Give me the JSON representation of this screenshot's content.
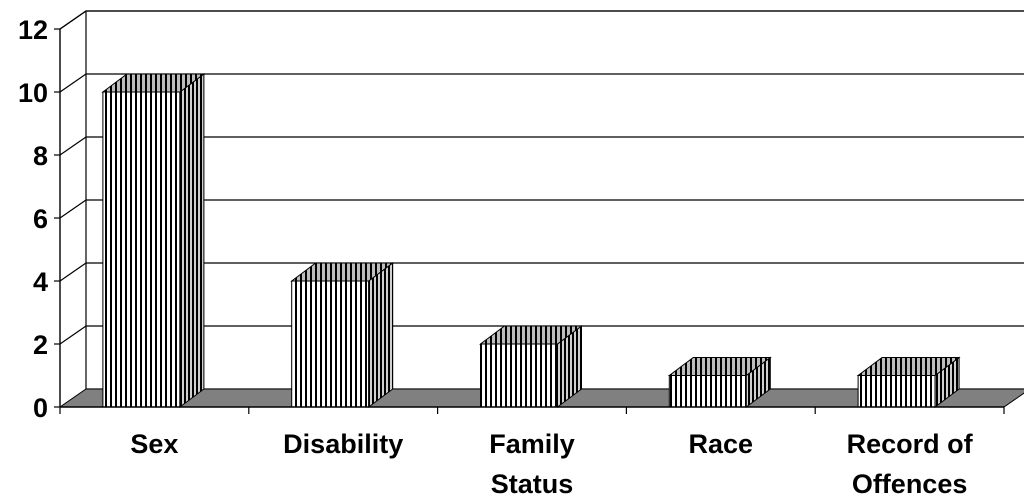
{
  "chart_data": {
    "type": "bar",
    "style": "3d-column",
    "categories": [
      "Sex",
      "Disability",
      "Family Status",
      "Race",
      "Record of Offences"
    ],
    "values": [
      10,
      4,
      2,
      1,
      1
    ],
    "title": "",
    "xlabel": "",
    "ylabel": "",
    "ylim": [
      0,
      12
    ],
    "yticks": [
      "0",
      "2",
      "4",
      "6",
      "8",
      "10",
      "12"
    ],
    "grid": true,
    "legend": "none",
    "colors": {
      "floor": "#808080",
      "bar_fill": "#ffffff",
      "bar_stripe": "#000000",
      "gridline": "#000000"
    }
  }
}
